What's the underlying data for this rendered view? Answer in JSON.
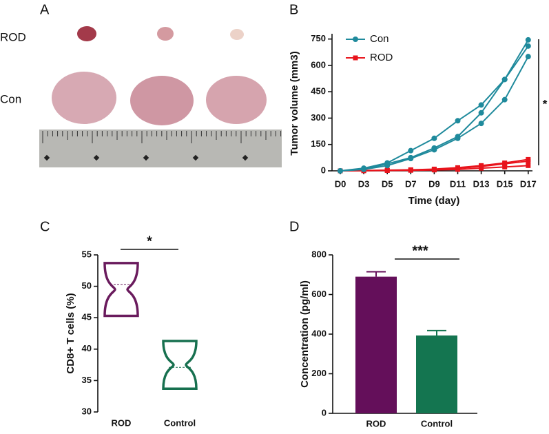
{
  "panel_labels": [
    "A",
    "B",
    "C",
    "D"
  ],
  "photo": {
    "row_labels": [
      "ROD",
      "Con"
    ]
  },
  "chart_data": [
    {
      "type": "line",
      "x_label": "Time (day)",
      "y_label": "Tumor volume (mm3)",
      "categories": [
        "D0",
        "D3",
        "D5",
        "D7",
        "D9",
        "D11",
        "D13",
        "D15",
        "D17"
      ],
      "ylim": [
        0,
        780
      ],
      "yticks": [
        0,
        150,
        300,
        450,
        600,
        750
      ],
      "legend": "top-left",
      "annotation": "*",
      "series": [
        {
          "name": "Con",
          "color": "#1f8a9c",
          "marker": "circle",
          "replicates": [
            {
              "values": [
                0,
                15,
                45,
                115,
                185,
                285,
                375,
                520,
                745
              ]
            },
            {
              "values": [
                0,
                10,
                40,
                75,
                130,
                195,
                330,
                520,
                710
              ]
            },
            {
              "values": [
                0,
                8,
                30,
                70,
                120,
                185,
                270,
                405,
                650
              ]
            }
          ]
        },
        {
          "name": "ROD",
          "color": "#e8141c",
          "marker": "square",
          "replicates": [
            {
              "values": [
                0,
                2,
                4,
                6,
                10,
                18,
                30,
                45,
                65
              ]
            },
            {
              "values": [
                0,
                1,
                3,
                5,
                8,
                14,
                25,
                40,
                55
              ]
            },
            {
              "values": [
                0,
                1,
                2,
                3,
                5,
                8,
                15,
                22,
                30
              ]
            }
          ]
        }
      ]
    },
    {
      "type": "violin",
      "y_label": "CD8+ T cells (%)",
      "categories": [
        "ROD",
        "Control"
      ],
      "colors": [
        "#6a1b5d",
        "#17704f"
      ],
      "min": [
        45.3,
        33.7
      ],
      "median": [
        50.3,
        37.1
      ],
      "max": [
        53.7,
        41.3
      ],
      "ylim": [
        30,
        55
      ],
      "yticks": [
        30,
        35,
        40,
        45,
        50,
        55
      ],
      "annotation": "*"
    },
    {
      "type": "bar",
      "y_label": "Concentration (pg/ml)",
      "categories": [
        "ROD",
        "Control"
      ],
      "colors": [
        "#640f5a",
        "#147550"
      ],
      "values": [
        690,
        393
      ],
      "errors": [
        25,
        25
      ],
      "ylim": [
        0,
        800
      ],
      "yticks": [
        0,
        200,
        400,
        600,
        800
      ],
      "annotation": "***"
    }
  ]
}
